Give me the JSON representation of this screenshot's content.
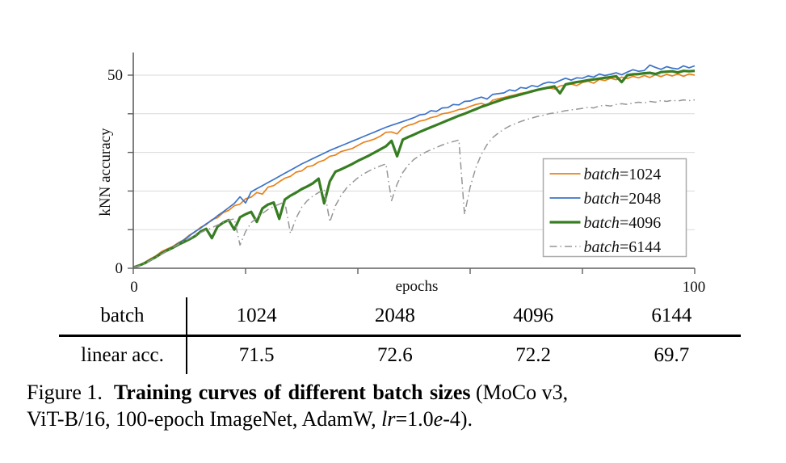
{
  "chart_data": {
    "type": "line",
    "title": "",
    "xlabel": "epochs",
    "ylabel": "kNN accuracy",
    "xlim": [
      0,
      100
    ],
    "ylim": [
      0,
      56
    ],
    "xticks": [
      0,
      20,
      40,
      60,
      80,
      100
    ],
    "yticks": [
      0,
      10,
      20,
      30,
      40,
      50
    ],
    "xtick_label_left": "0",
    "xtick_label_right": "100",
    "ytick_label_bottom": "0",
    "ytick_label_top": "50",
    "grid": "horizontal gridlines at 10,20,30,40,50",
    "legend_position": "inside lower-right",
    "axis_color": "#5f5f5f",
    "grid_color": "#d9d9d9",
    "x_range": [
      0,
      100
    ],
    "x_step": 1,
    "series": [
      {
        "name": "batch=1024",
        "color": "#E8821A",
        "line_width": 1.7,
        "dash": "solid",
        "y": [
          0.2,
          0.8,
          1.5,
          2.4,
          3.2,
          4.3,
          5.0,
          5.6,
          6.6,
          7.4,
          8.6,
          9.4,
          10.6,
          11.3,
          12.6,
          13.1,
          14.4,
          15.0,
          16.2,
          16.6,
          18.0,
          18.4,
          19.6,
          19.2,
          21.0,
          21.4,
          22.4,
          23.3,
          23.8,
          24.9,
          25.2,
          26.3,
          26.6,
          27.5,
          28.0,
          29.0,
          29.3,
          30.2,
          30.6,
          31.0,
          31.8,
          32.6,
          33.0,
          33.5,
          34.2,
          35.2,
          35.3,
          34.8,
          36.4,
          37.0,
          37.4,
          38.1,
          38.4,
          39.0,
          39.3,
          40.0,
          40.2,
          40.6,
          41.1,
          41.3,
          41.9,
          42.4,
          42.7,
          42.2,
          43.5,
          43.9,
          44.2,
          44.6,
          44.9,
          45.3,
          45.5,
          46.0,
          46.1,
          46.5,
          46.7,
          46.4,
          47.2,
          47.5,
          47.7,
          47.3,
          48.1,
          48.4,
          47.9,
          48.9,
          48.6,
          49.2,
          48.8,
          49.5,
          49.1,
          49.7,
          49.3,
          49.9,
          49.4,
          50.1,
          49.6,
          50.2,
          49.8,
          50.3,
          49.7,
          50.3,
          50.0
        ]
      },
      {
        "name": "batch=2048",
        "color": "#3C73C8",
        "line_width": 1.7,
        "dash": "solid",
        "y": [
          0.2,
          0.7,
          1.4,
          2.2,
          3.0,
          4.0,
          4.8,
          5.5,
          6.4,
          7.3,
          8.4,
          9.5,
          10.4,
          11.5,
          12.4,
          13.6,
          14.6,
          15.7,
          16.8,
          18.5,
          16.9,
          19.8,
          20.6,
          21.4,
          22.2,
          23.0,
          23.8,
          24.6,
          25.4,
          26.2,
          27.0,
          27.7,
          28.4,
          29.1,
          29.8,
          30.5,
          31.1,
          31.7,
          32.3,
          32.9,
          33.5,
          34.1,
          34.7,
          35.3,
          35.9,
          36.5,
          37.0,
          37.5,
          38.0,
          38.5,
          39.0,
          39.7,
          39.9,
          40.8,
          40.6,
          41.5,
          41.6,
          42.4,
          42.3,
          43.2,
          43.3,
          43.9,
          44.3,
          43.8,
          45.0,
          45.2,
          45.4,
          46.2,
          45.9,
          46.8,
          46.6,
          47.3,
          47.0,
          47.8,
          48.2,
          48.0,
          48.6,
          49.2,
          48.7,
          49.3,
          49.2,
          49.8,
          49.5,
          50.3,
          49.9,
          50.2,
          50.6,
          50.1,
          50.8,
          51.4,
          51.0,
          51.2,
          52.6,
          52.0,
          51.5,
          52.2,
          51.8,
          51.6,
          52.4,
          51.9,
          52.4
        ]
      },
      {
        "name": "batch=4096",
        "color": "#377D22",
        "line_width": 3.2,
        "dash": "solid",
        "y": [
          0.2,
          0.7,
          1.3,
          2.1,
          2.9,
          3.8,
          4.6,
          5.3,
          6.1,
          6.8,
          7.5,
          8.3,
          9.5,
          10.2,
          7.8,
          10.8,
          11.8,
          12.5,
          10.0,
          13.2,
          14.0,
          14.6,
          12.0,
          15.5,
          16.5,
          17.0,
          12.8,
          17.8,
          18.8,
          19.6,
          20.5,
          21.2,
          22.0,
          23.2,
          16.8,
          22.5,
          25.0,
          25.6,
          26.3,
          27.0,
          27.8,
          28.5,
          29.2,
          30.0,
          30.8,
          31.6,
          33.0,
          29.0,
          33.3,
          34.0,
          34.6,
          35.3,
          35.9,
          36.5,
          37.1,
          37.7,
          38.3,
          38.9,
          39.5,
          40.0,
          40.6,
          41.2,
          41.8,
          42.3,
          42.8,
          43.3,
          43.8,
          44.2,
          44.6,
          45.0,
          45.4,
          45.8,
          46.2,
          46.5,
          46.8,
          47.1,
          45.3,
          47.6,
          47.9,
          48.2,
          48.4,
          48.7,
          48.9,
          49.1,
          49.3,
          49.5,
          49.7,
          48.2,
          50.0,
          50.2,
          50.3,
          50.5,
          50.6,
          50.3,
          50.8,
          50.9,
          51.0,
          50.7,
          51.1,
          51.0,
          51.1
        ]
      },
      {
        "name": "batch=6144",
        "color": "#969696",
        "line_width": 1.5,
        "dash": "dash-dot",
        "y": [
          0.2,
          0.6,
          1.2,
          2.0,
          2.8,
          3.6,
          4.5,
          5.3,
          6.2,
          7.0,
          7.8,
          8.5,
          9.2,
          9.9,
          10.5,
          11.2,
          11.8,
          12.4,
          12.8,
          6.0,
          9.5,
          11.8,
          13.0,
          14.2,
          15.2,
          16.0,
          16.6,
          17.2,
          9.0,
          13.0,
          15.8,
          17.5,
          18.7,
          19.6,
          20.4,
          12.0,
          16.2,
          18.8,
          20.8,
          22.2,
          23.4,
          24.4,
          25.2,
          25.9,
          26.5,
          27.0,
          17.5,
          21.8,
          24.8,
          26.8,
          28.2,
          29.2,
          30.0,
          30.7,
          31.3,
          31.9,
          32.4,
          32.8,
          33.2,
          14.0,
          21.0,
          26.0,
          29.5,
          32.0,
          33.8,
          35.0,
          36.0,
          36.8,
          37.4,
          38.0,
          38.5,
          38.9,
          39.3,
          39.6,
          40.0,
          40.2,
          40.5,
          40.8,
          41.0,
          41.2,
          41.4,
          41.7,
          41.5,
          42.0,
          42.2,
          42.0,
          42.4,
          42.6,
          42.4,
          42.8,
          43.0,
          42.8,
          43.2,
          43.0,
          43.4,
          43.2,
          43.5,
          43.3,
          43.6,
          43.4,
          43.6
        ]
      }
    ]
  },
  "table": {
    "header_col": [
      "batch",
      "linear acc."
    ],
    "batch_values": [
      "1024",
      "2048",
      "4096",
      "6144"
    ],
    "linear_acc_values": [
      "71.5",
      "72.6",
      "72.2",
      "69.7"
    ]
  },
  "caption": {
    "label": "Figure 1.",
    "bold": "Training curves of different batch sizes",
    "tail1": " (MoCo v3,",
    "line2_pre": "ViT-B/16, 100-epoch ImageNet, AdamW, ",
    "lr_italic": "lr",
    "mid": "=1.0",
    "e_italic": "e",
    "tail2": "-4)."
  }
}
